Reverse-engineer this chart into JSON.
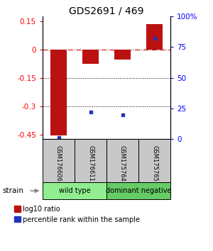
{
  "title": "GDS2691 / 469",
  "samples": [
    "GSM176606",
    "GSM176611",
    "GSM175764",
    "GSM175765"
  ],
  "log10_ratios": [
    -0.455,
    -0.075,
    -0.055,
    0.135
  ],
  "percentile_ranks": [
    1.5,
    22.0,
    20.0,
    82.0
  ],
  "groups": [
    {
      "label": "wild type",
      "samples": [
        0,
        1
      ],
      "color": "#90ee90"
    },
    {
      "label": "dominant negative",
      "samples": [
        2,
        3
      ],
      "color": "#66cc66"
    }
  ],
  "ylim_left": [
    -0.475,
    0.175
  ],
  "ylim_right": [
    0,
    100
  ],
  "yticks_left": [
    0.15,
    0.0,
    -0.15,
    -0.3,
    -0.45
  ],
  "ytick_labels_left": [
    "0.15",
    "0",
    "-0.15",
    "-0.3",
    "-0.45"
  ],
  "yticks_right": [
    100,
    75,
    50,
    25,
    0
  ],
  "ytick_labels_right": [
    "100%",
    "75",
    "50",
    "25",
    "0"
  ],
  "bar_color": "#bb1111",
  "dot_color": "#2233bb",
  "dotted_lines": [
    -0.15,
    -0.3
  ],
  "legend_red_label": "log10 ratio",
  "legend_blue_label": "percentile rank within the sample",
  "strain_label": "strain",
  "bar_width": 0.5,
  "sample_box_color": "#c8c8c8",
  "group_colors": [
    "#90ee90",
    "#66cc66"
  ]
}
